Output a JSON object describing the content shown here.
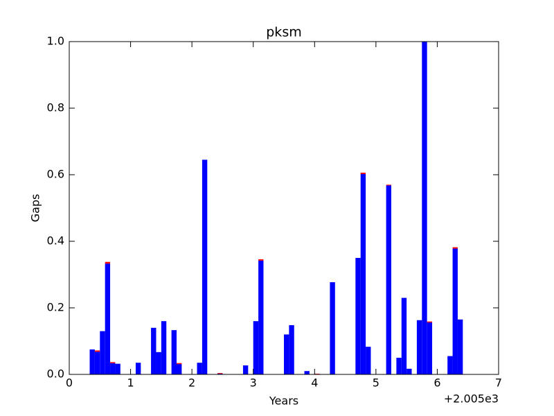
{
  "chart_data": {
    "type": "bar",
    "title": "pksm",
    "xlabel": "Years",
    "ylabel": "Gaps",
    "x_offset_label": "+2.005e3",
    "x": [
      2005.3333,
      2005.4167,
      2005.5,
      2005.5833,
      2005.6667,
      2005.75,
      2006.0833,
      2006.3333,
      2006.4167,
      2006.5,
      2006.6667,
      2006.75,
      2007.0833,
      2007.1667,
      2007.4167,
      2007.8333,
      2008.0,
      2008.0833,
      2008.5,
      2008.5833,
      2008.8333,
      2009.0,
      2009.25,
      2009.6667,
      2009.75,
      2009.8333,
      2010.1667,
      2010.3333,
      2010.4167,
      2010.5,
      2010.6667,
      2010.75,
      2010.8333,
      2011.1667,
      2011.25,
      2011.3333
    ],
    "series": [
      {
        "color": "#0000ff",
        "values": [
          0.075,
          0.068,
          0.13,
          0.333,
          0.034,
          0.032,
          0.035,
          0.14,
          0.067,
          0.16,
          0.133,
          0.031,
          0.035,
          0.645,
          0.002,
          0.027,
          0.16,
          0.342,
          0.12,
          0.148,
          0.01,
          0,
          0.277,
          0.35,
          0.602,
          0.083,
          0.568,
          0.05,
          0.23,
          0.017,
          0.163,
          1.0,
          0.156,
          0.055,
          0.378,
          0.165
        ]
      },
      {
        "color": "#ff0000",
        "values": [
          0,
          0.004,
          0,
          0.005,
          0.003,
          0,
          0,
          0,
          0,
          0,
          0,
          0.003,
          0,
          0,
          0.002,
          0,
          0,
          0.004,
          0,
          0,
          0,
          0.002,
          0,
          0,
          0.004,
          0,
          0.002,
          0,
          0,
          0,
          0,
          0,
          0.003,
          0,
          0.004,
          0
        ]
      }
    ],
    "stacked": true,
    "xlim": [
      2005,
      2012
    ],
    "xticks": [
      {
        "value": 2005,
        "label": "0"
      },
      {
        "value": 2006,
        "label": "1"
      },
      {
        "value": 2007,
        "label": "2"
      },
      {
        "value": 2008,
        "label": "3"
      },
      {
        "value": 2009,
        "label": "4"
      },
      {
        "value": 2010,
        "label": "5"
      },
      {
        "value": 2011,
        "label": "6"
      },
      {
        "value": 2012,
        "label": "7"
      }
    ],
    "ylim": [
      0,
      1
    ],
    "yticks": [
      {
        "value": 0,
        "label": "0.0"
      },
      {
        "value": 0.2,
        "label": "0.2"
      },
      {
        "value": 0.4,
        "label": "0.4"
      },
      {
        "value": 0.6,
        "label": "0.6"
      },
      {
        "value": 0.8,
        "label": "0.8"
      },
      {
        "value": 1,
        "label": "1.0"
      }
    ]
  }
}
